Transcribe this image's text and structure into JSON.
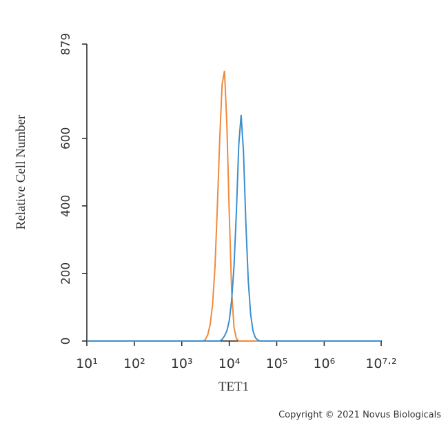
{
  "chart_data": {
    "type": "line",
    "x_label": "TET1",
    "y_label": "Relative Cell Number",
    "copyright": "Copyright © 2021 Novus Biologicals",
    "xscale": "log",
    "xlim": [
      10,
      15848932
    ],
    "xticks": [
      {
        "value": 10,
        "label": "10¹"
      },
      {
        "value": 100,
        "label": "10²"
      },
      {
        "value": 1000,
        "label": "10³"
      },
      {
        "value": 10000,
        "label": "10⁴"
      },
      {
        "value": 100000,
        "label": "10⁵"
      },
      {
        "value": 1000000,
        "label": "10⁶"
      },
      {
        "value": 15848932,
        "label": "10⁷·²"
      }
    ],
    "ylim": [
      0,
      879
    ],
    "yticks": [
      0,
      200,
      400,
      600,
      879
    ],
    "x": [
      10,
      2512,
      2818,
      3162,
      3548,
      3981,
      4467,
      5012,
      5623,
      6310,
      7079,
      7943,
      8913,
      10000,
      11220,
      12589,
      14125,
      15849,
      17783,
      19953,
      22387,
      25119,
      28184,
      31623,
      35481,
      39811,
      44668,
      50119,
      15848932
    ],
    "series": [
      {
        "color": "#f08a3c",
        "values": [
          0,
          0,
          0,
          5,
          20,
          50,
          110,
          220,
          400,
          600,
          760,
          800,
          640,
          380,
          150,
          40,
          8,
          0,
          0,
          0,
          0,
          0,
          0,
          0,
          0,
          0,
          0,
          0,
          0
        ]
      },
      {
        "color": "#3a8fd0",
        "values": [
          0,
          0,
          0,
          0,
          0,
          0,
          0,
          0,
          0,
          0,
          5,
          15,
          30,
          60,
          120,
          220,
          380,
          580,
          669,
          560,
          350,
          180,
          80,
          30,
          10,
          3,
          0,
          0,
          0
        ]
      }
    ]
  }
}
